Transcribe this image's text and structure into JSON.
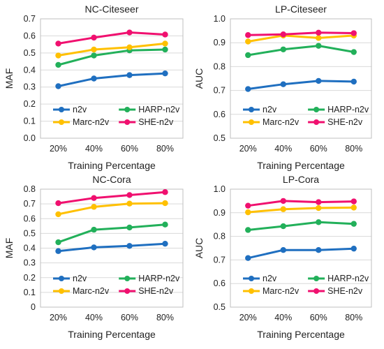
{
  "chart_data": [
    {
      "type": "line",
      "title": "NC-Citeseer",
      "xlabel": "Training Percentage",
      "ylabel": "MAF",
      "categories": [
        "20%",
        "40%",
        "60%",
        "80%"
      ],
      "ylim": [
        0.0,
        0.7
      ],
      "yticks": [
        "0.0",
        "0.1",
        "0.2",
        "0.3",
        "0.4",
        "0.5",
        "0.6",
        "0.7"
      ],
      "grid": true,
      "legend": "inside-bottom",
      "series": [
        {
          "name": "n2v",
          "color": "#1F6FC0",
          "values": [
            0.305,
            0.35,
            0.37,
            0.38
          ]
        },
        {
          "name": "HARP-n2v",
          "color": "#22B05A",
          "values": [
            0.43,
            0.485,
            0.515,
            0.52
          ]
        },
        {
          "name": "Marc-n2v",
          "color": "#FFC000",
          "values": [
            0.485,
            0.52,
            0.533,
            0.555
          ]
        },
        {
          "name": "SHE-n2v",
          "color": "#F0106F",
          "values": [
            0.555,
            0.59,
            0.62,
            0.608
          ]
        }
      ]
    },
    {
      "type": "line",
      "title": "LP-Citeseer",
      "xlabel": "Training Percentage",
      "ylabel": "AUC",
      "categories": [
        "20%",
        "40%",
        "60%",
        "80%"
      ],
      "ylim": [
        0.5,
        1.0
      ],
      "yticks": [
        "0.5",
        "0.6",
        "0.7",
        "0.8",
        "0.9",
        "1.0"
      ],
      "grid": true,
      "legend": "inside-bottom",
      "series": [
        {
          "name": "n2v",
          "color": "#1F6FC0",
          "values": [
            0.706,
            0.726,
            0.74,
            0.737
          ]
        },
        {
          "name": "HARP-n2v",
          "color": "#22B05A",
          "values": [
            0.848,
            0.872,
            0.887,
            0.861
          ]
        },
        {
          "name": "Marc-n2v",
          "color": "#FFC000",
          "values": [
            0.905,
            0.93,
            0.92,
            0.93
          ]
        },
        {
          "name": "SHE-n2v",
          "color": "#F0106F",
          "values": [
            0.932,
            0.935,
            0.942,
            0.94
          ]
        }
      ]
    },
    {
      "type": "line",
      "title": "NC-Cora",
      "xlabel": "Training Percentage",
      "ylabel": "MAF",
      "categories": [
        "20%",
        "40%",
        "60%",
        "80%"
      ],
      "ylim": [
        0.0,
        0.8
      ],
      "yticks": [
        "0",
        "0.1",
        "0.2",
        "0.3",
        "0.4",
        "0.5",
        "0.6",
        "0.7",
        "0.8"
      ],
      "grid": true,
      "legend": "inside-bottom",
      "series": [
        {
          "name": "n2v",
          "color": "#1F6FC0",
          "values": [
            0.38,
            0.405,
            0.415,
            0.43
          ]
        },
        {
          "name": "HARP-n2v",
          "color": "#22B05A",
          "values": [
            0.44,
            0.525,
            0.54,
            0.56
          ]
        },
        {
          "name": "Marc-n2v",
          "color": "#FFC000",
          "values": [
            0.63,
            0.68,
            0.702,
            0.705
          ]
        },
        {
          "name": "SHE-n2v",
          "color": "#F0106F",
          "values": [
            0.705,
            0.74,
            0.76,
            0.78
          ]
        }
      ]
    },
    {
      "type": "line",
      "title": "LP-Cora",
      "xlabel": "Training Percentage",
      "ylabel": "AUC",
      "categories": [
        "20%",
        "40%",
        "60%",
        "80%"
      ],
      "ylim": [
        0.5,
        1.0
      ],
      "yticks": [
        "0.5",
        "0.6",
        "0.7",
        "0.8",
        "0.9",
        "1.0"
      ],
      "grid": true,
      "legend": "inside-bottom",
      "series": [
        {
          "name": "n2v",
          "color": "#1F6FC0",
          "values": [
            0.708,
            0.742,
            0.742,
            0.748
          ]
        },
        {
          "name": "HARP-n2v",
          "color": "#22B05A",
          "values": [
            0.827,
            0.843,
            0.86,
            0.853
          ]
        },
        {
          "name": "Marc-n2v",
          "color": "#FFC000",
          "values": [
            0.902,
            0.915,
            0.92,
            0.922
          ]
        },
        {
          "name": "SHE-n2v",
          "color": "#F0106F",
          "values": [
            0.93,
            0.95,
            0.945,
            0.948
          ]
        }
      ]
    }
  ]
}
